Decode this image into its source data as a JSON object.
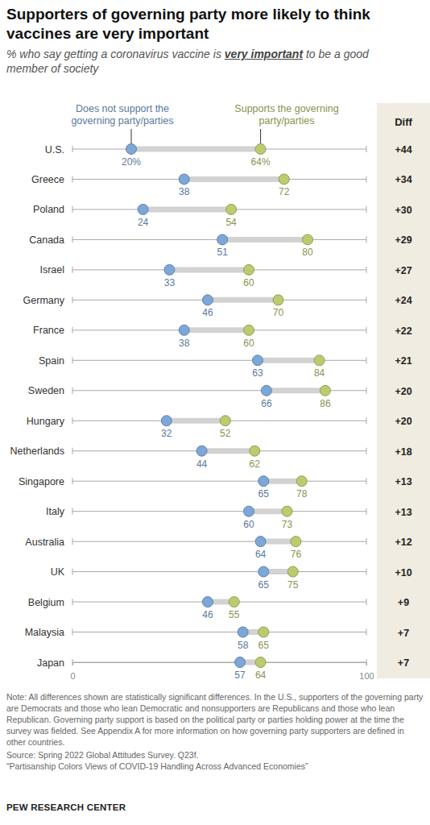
{
  "chart_data": {
    "type": "dot",
    "title": "Supporters of governing party more likely to think vaccines are very important",
    "subtitle": [
      "% who say getting a coronavirus vaccine is ",
      "very important",
      " to be a good member of society"
    ],
    "categories": [
      "U.S.",
      "Greece",
      "Poland",
      "Canada",
      "Israel",
      "Germany",
      "France",
      "Spain",
      "Sweden",
      "Hungary",
      "Netherlands",
      "Singapore",
      "Italy",
      "Australia",
      "UK",
      "Belgium",
      "Malaysia",
      "Japan"
    ],
    "series": [
      {
        "name": "Does not support the governing party/parties",
        "color": "#7ca7d8",
        "values": [
          20,
          38,
          24,
          51,
          33,
          46,
          38,
          63,
          66,
          32,
          44,
          65,
          60,
          64,
          65,
          46,
          58,
          57
        ],
        "value_labels": [
          "20%",
          "38",
          "24",
          "51",
          "33",
          "46",
          "38",
          "63",
          "66",
          "32",
          "44",
          "65",
          "60",
          "64",
          "65",
          "46",
          "58",
          "57"
        ]
      },
      {
        "name": "Supports the governing party/parties",
        "color": "#bccb6e",
        "values": [
          64,
          72,
          54,
          80,
          60,
          70,
          60,
          84,
          86,
          52,
          62,
          78,
          73,
          76,
          75,
          55,
          65,
          64
        ],
        "value_labels": [
          "64%",
          "72",
          "54",
          "80",
          "60",
          "70",
          "60",
          "84",
          "86",
          "52",
          "62",
          "78",
          "73",
          "76",
          "75",
          "55",
          "65",
          "64"
        ]
      }
    ],
    "xlim": [
      0,
      100
    ],
    "xticks": [
      0,
      100
    ],
    "data_labels": true,
    "diff": {
      "title": "Diff",
      "values": [
        44,
        34,
        30,
        29,
        27,
        24,
        22,
        21,
        20,
        20,
        18,
        13,
        13,
        12,
        10,
        9,
        7,
        7
      ],
      "value_labels": [
        "+44",
        "+34",
        "+30",
        "+29",
        "+27",
        "+24",
        "+22",
        "+21",
        "+20",
        "+20",
        "+18",
        "+13",
        "+13",
        "+12",
        "+10",
        "+9",
        "+7",
        "+7"
      ]
    },
    "note": "Note: All differences shown are statistically significant differences. In the U.S., supporters of the governing party are Democrats and those who lean Democratic and nonsupporters are Republicans and those who lean Republican. Governing party support is based on the political party or parties holding power at the time the survey was fielded. See Appendix A for more information on how governing party supporters are defined in other countries.",
    "source": "Source: Spring 2022 Global Attitudes Survey. Q23f.",
    "report": "“Partisanship Colors Views of COVID-19 Handling Across Advanced Economies”",
    "credit": "PEW RESEARCH CENTER"
  }
}
